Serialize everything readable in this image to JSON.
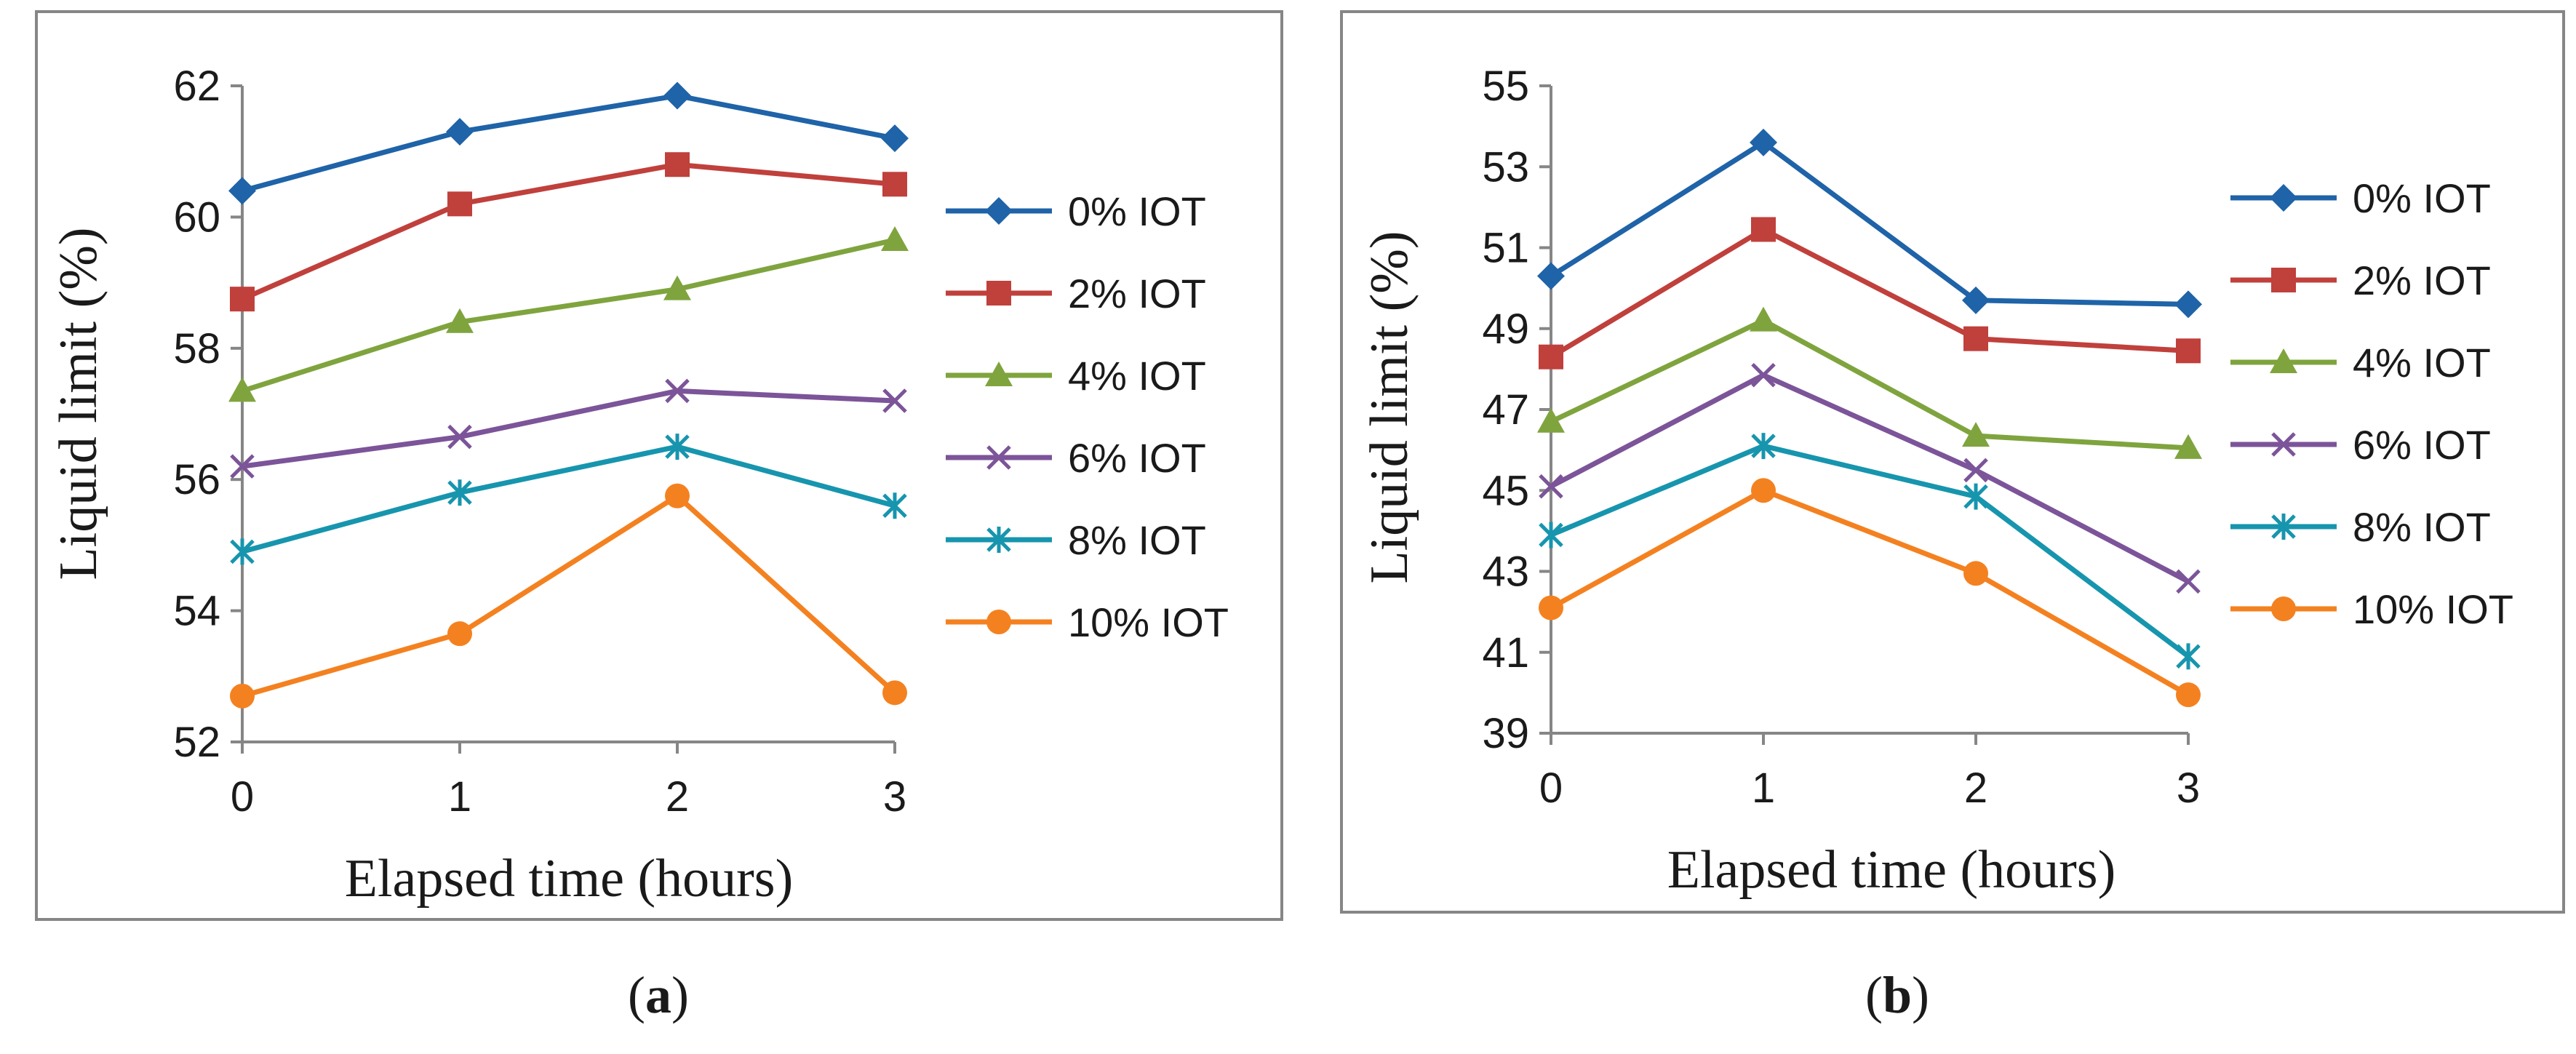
{
  "colors": {
    "0% IOT": "#1F63A8",
    "2% IOT": "#C0403C",
    "4% IOT": "#7FA43E",
    "6% IOT": "#7C5499",
    "8% IOT": "#1795AE",
    "10% IOT": "#F48120",
    "axis": "#868686",
    "frame": "#868686",
    "text": "#1a1a1a"
  },
  "chart_data": [
    {
      "type": "line",
      "panel_label": "a",
      "title": "",
      "xlabel": "Elapsed time (hours)",
      "ylabel": "Liquid limit (%)",
      "x": [
        0,
        1,
        2,
        3
      ],
      "ylim": [
        52,
        62
      ],
      "yticks": [
        52,
        54,
        56,
        58,
        60,
        62
      ],
      "grid": false,
      "legend": "right",
      "series": [
        {
          "name": "0% IOT",
          "marker": "diamond",
          "values": [
            60.4,
            61.3,
            61.85,
            61.2
          ]
        },
        {
          "name": "2% IOT",
          "marker": "square",
          "values": [
            58.75,
            60.2,
            60.8,
            60.5
          ]
        },
        {
          "name": "4% IOT",
          "marker": "triangle",
          "values": [
            57.35,
            58.4,
            58.9,
            59.65
          ]
        },
        {
          "name": "6% IOT",
          "marker": "x",
          "values": [
            56.2,
            56.65,
            57.35,
            57.2
          ]
        },
        {
          "name": "8% IOT",
          "marker": "star",
          "values": [
            54.9,
            55.8,
            56.5,
            55.6
          ]
        },
        {
          "name": "10% IOT",
          "marker": "circle",
          "values": [
            52.7,
            53.65,
            55.75,
            52.75
          ]
        }
      ]
    },
    {
      "type": "line",
      "panel_label": "b",
      "title": "",
      "xlabel": "Elapsed time (hours)",
      "ylabel": "Liquid limit (%)",
      "x": [
        0,
        1,
        2,
        3
      ],
      "ylim": [
        39,
        55
      ],
      "yticks": [
        39,
        41,
        43,
        45,
        47,
        49,
        51,
        53,
        55
      ],
      "grid": false,
      "legend": "right",
      "series": [
        {
          "name": "0% IOT",
          "marker": "diamond",
          "values": [
            50.3,
            53.6,
            49.7,
            49.6
          ]
        },
        {
          "name": "2% IOT",
          "marker": "square",
          "values": [
            48.3,
            51.45,
            48.75,
            48.45
          ]
        },
        {
          "name": "4% IOT",
          "marker": "triangle",
          "values": [
            46.7,
            49.2,
            46.35,
            46.05
          ]
        },
        {
          "name": "6% IOT",
          "marker": "x",
          "values": [
            45.1,
            47.85,
            45.5,
            42.75
          ]
        },
        {
          "name": "8% IOT",
          "marker": "star",
          "values": [
            43.9,
            46.1,
            44.85,
            40.9
          ]
        },
        {
          "name": "10% IOT",
          "marker": "circle",
          "values": [
            42.1,
            45.0,
            42.95,
            39.95
          ]
        }
      ]
    }
  ]
}
